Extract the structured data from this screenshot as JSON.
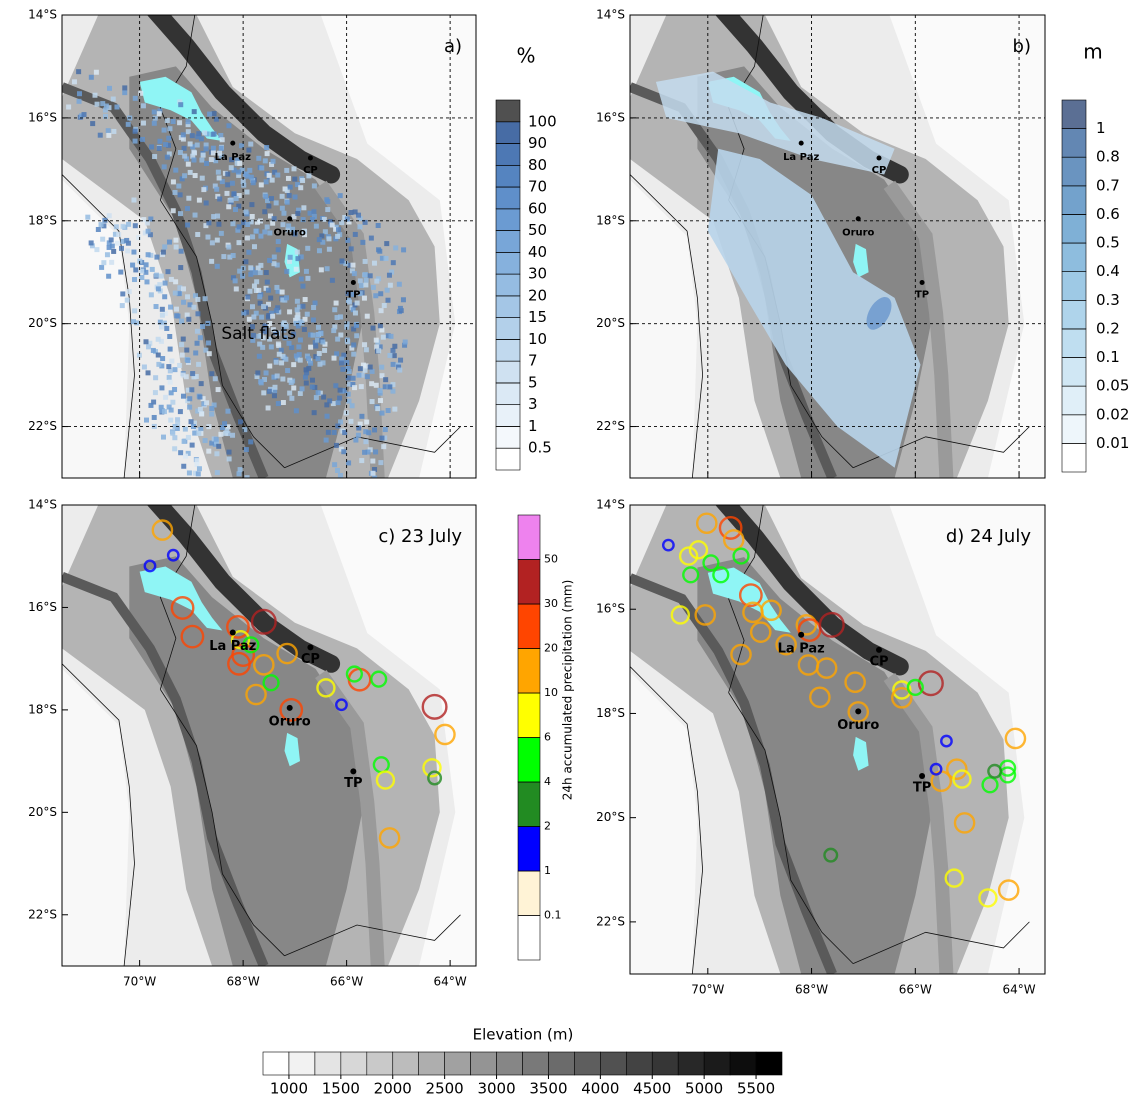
{
  "panels": [
    {
      "label": "a)"
    },
    {
      "label": "b)"
    },
    {
      "label": "c) 23 July",
      "stations": [
        {
          "lon": -69.56,
          "lat": -14.49,
          "value": 15
        },
        {
          "lon": -69.17,
          "lat": -16.01,
          "value": 25
        },
        {
          "lon": -68.98,
          "lat": -16.57,
          "value": 25
        },
        {
          "lon": -68.1,
          "lat": -16.38,
          "value": 25
        },
        {
          "lon": -67.6,
          "lat": -16.28,
          "value": 40
        },
        {
          "lon": -68.0,
          "lat": -16.93,
          "value": 25
        },
        {
          "lon": -68.08,
          "lat": -17.1,
          "value": 25
        },
        {
          "lon": -68.05,
          "lat": -16.63,
          "value": 8
        },
        {
          "lon": -67.85,
          "lat": -16.73,
          "value": 5
        },
        {
          "lon": -67.6,
          "lat": -17.12,
          "value": 15
        },
        {
          "lon": -67.75,
          "lat": -17.7,
          "value": 15
        },
        {
          "lon": -67.15,
          "lat": -16.9,
          "value": 15
        },
        {
          "lon": -67.07,
          "lat": -18.0,
          "value": 25
        },
        {
          "lon": -66.4,
          "lat": -17.57,
          "value": 8
        },
        {
          "lon": -65.75,
          "lat": -17.41,
          "value": 25
        },
        {
          "lon": -65.85,
          "lat": -17.3,
          "value": 5
        },
        {
          "lon": -66.1,
          "lat": -17.9,
          "value": 1.5
        },
        {
          "lon": -65.38,
          "lat": -17.4,
          "value": 5
        },
        {
          "lon": -64.3,
          "lat": -17.94,
          "value": 40
        },
        {
          "lon": -64.1,
          "lat": -18.48,
          "value": 15
        },
        {
          "lon": -65.33,
          "lat": -19.07,
          "value": 5
        },
        {
          "lon": -65.25,
          "lat": -19.37,
          "value": 8
        },
        {
          "lon": -64.35,
          "lat": -19.13,
          "value": 8
        },
        {
          "lon": -64.3,
          "lat": -19.33,
          "value": 3
        },
        {
          "lon": -65.17,
          "lat": -20.5,
          "value": 15
        },
        {
          "lon": -69.35,
          "lat": -14.98,
          "value": 1.5
        },
        {
          "lon": -69.8,
          "lat": -15.19,
          "value": 1.5
        },
        {
          "lon": -67.46,
          "lat": -17.47,
          "value": 5
        }
      ]
    },
    {
      "label": "d) 24 July",
      "stations": [
        {
          "lon": -70.02,
          "lat": -14.35,
          "value": 15
        },
        {
          "lon": -69.56,
          "lat": -14.44,
          "value": 25
        },
        {
          "lon": -69.5,
          "lat": -14.67,
          "value": 15
        },
        {
          "lon": -70.37,
          "lat": -14.98,
          "value": 8
        },
        {
          "lon": -70.18,
          "lat": -14.86,
          "value": 8
        },
        {
          "lon": -70.33,
          "lat": -15.34,
          "value": 5
        },
        {
          "lon": -69.94,
          "lat": -15.11,
          "value": 5
        },
        {
          "lon": -69.75,
          "lat": -15.34,
          "value": 5
        },
        {
          "lon": -69.36,
          "lat": -14.98,
          "value": 5
        },
        {
          "lon": -70.53,
          "lat": -16.11,
          "value": 8
        },
        {
          "lon": -70.05,
          "lat": -16.11,
          "value": 15
        },
        {
          "lon": -69.17,
          "lat": -15.73,
          "value": 25
        },
        {
          "lon": -69.13,
          "lat": -16.06,
          "value": 15
        },
        {
          "lon": -68.78,
          "lat": -16.02,
          "value": 15
        },
        {
          "lon": -68.98,
          "lat": -16.44,
          "value": 15
        },
        {
          "lon": -68.1,
          "lat": -16.3,
          "value": 15
        },
        {
          "lon": -68.04,
          "lat": -16.4,
          "value": 25
        },
        {
          "lon": -67.61,
          "lat": -16.3,
          "value": 40
        },
        {
          "lon": -68.49,
          "lat": -16.68,
          "value": 15
        },
        {
          "lon": -68.06,
          "lat": -17.07,
          "value": 15
        },
        {
          "lon": -67.71,
          "lat": -17.13,
          "value": 15
        },
        {
          "lon": -69.36,
          "lat": -16.87,
          "value": 15
        },
        {
          "lon": -67.84,
          "lat": -17.69,
          "value": 15
        },
        {
          "lon": -67.16,
          "lat": -17.4,
          "value": 15
        },
        {
          "lon": -67.1,
          "lat": -17.97,
          "value": 15
        },
        {
          "lon": -66.26,
          "lat": -17.55,
          "value": 8
        },
        {
          "lon": -66.26,
          "lat": -17.7,
          "value": 15
        },
        {
          "lon": -65.7,
          "lat": -17.42,
          "value": 40
        },
        {
          "lon": -66.0,
          "lat": -17.5,
          "value": 5
        },
        {
          "lon": -65.5,
          "lat": -19.3,
          "value": 15
        },
        {
          "lon": -65.2,
          "lat": -19.07,
          "value": 15
        },
        {
          "lon": -65.1,
          "lat": -19.26,
          "value": 8
        },
        {
          "lon": -64.56,
          "lat": -19.37,
          "value": 5
        },
        {
          "lon": -64.22,
          "lat": -19.18,
          "value": 5
        },
        {
          "lon": -64.22,
          "lat": -19.05,
          "value": 5
        },
        {
          "lon": -64.07,
          "lat": -18.48,
          "value": 15
        },
        {
          "lon": -65.05,
          "lat": -20.1,
          "value": 15
        },
        {
          "lon": -65.25,
          "lat": -21.16,
          "value": 8
        },
        {
          "lon": -64.2,
          "lat": -21.39,
          "value": 15
        },
        {
          "lon": -64.6,
          "lat": -21.54,
          "value": 8
        },
        {
          "lon": -67.63,
          "lat": -20.72,
          "value": 3
        },
        {
          "lon": -65.6,
          "lat": -19.07,
          "value": 1.5
        },
        {
          "lon": -65.4,
          "lat": -18.53,
          "value": 1.5
        },
        {
          "lon": -70.76,
          "lat": -14.77,
          "value": 1.5
        },
        {
          "lon": -64.47,
          "lat": -19.11,
          "value": 3
        }
      ]
    }
  ],
  "lonlim": [
    -71.5,
    -63.5
  ],
  "latlim": [
    -23,
    -14
  ],
  "lat_ticks": [
    {
      "value": -14,
      "label": "14°S"
    },
    {
      "value": -16,
      "label": "16°S"
    },
    {
      "value": -18,
      "label": "18°S"
    },
    {
      "value": -20,
      "label": "20°S"
    },
    {
      "value": -22,
      "label": "22°S"
    }
  ],
  "lon_ticks": [
    {
      "value": -70,
      "label": "70°W"
    },
    {
      "value": -68,
      "label": "68°W"
    },
    {
      "value": -66,
      "label": "66°W"
    },
    {
      "value": -64,
      "label": "64°W"
    }
  ],
  "places": [
    {
      "name": "La Paz",
      "lon": -68.2,
      "lat": -16.49
    },
    {
      "name": "CP",
      "lon": -66.7,
      "lat": -16.78
    },
    {
      "name": "Oruro",
      "lon": -67.1,
      "lat": -17.96
    },
    {
      "name": "TP",
      "lon": -65.87,
      "lat": -19.2
    }
  ],
  "annotation": "Salt flats",
  "percent_colorbar": {
    "title": "%",
    "ticks": [
      0.5,
      1,
      3,
      5,
      7,
      10,
      15,
      20,
      30,
      40,
      50,
      60,
      70,
      80,
      90,
      100
    ],
    "colors": [
      "#ffffff",
      "#f4f8fc",
      "#e8f1f9",
      "#dbe9f5",
      "#cfe1f1",
      "#c1d9ee",
      "#b3d0ea",
      "#a4c6e6",
      "#95bce2",
      "#86b1dd",
      "#78a6d8",
      "#6b9bd2",
      "#5f8fca",
      "#5584c0",
      "#4d78b4",
      "#476ca5",
      "#505050"
    ]
  },
  "depth_colorbar": {
    "title": "m",
    "ticks": [
      0.01,
      0.02,
      0.05,
      0.1,
      0.2,
      0.3,
      0.4,
      0.5,
      0.6,
      0.7,
      0.8,
      1
    ],
    "colors": [
      "#ffffff",
      "#eef6fb",
      "#e0eff8",
      "#d0e7f4",
      "#bfdef0",
      "#afd4eb",
      "#9ec9e5",
      "#8ebdde",
      "#7fb0d6",
      "#73a2cc",
      "#6a94c0",
      "#6387b3",
      "#5b6f94"
    ]
  },
  "precip_colorbar": {
    "title": "24h accumulated precipitation (mm)",
    "ticks": [
      0.1,
      1,
      2,
      4,
      6,
      10,
      20,
      30,
      50
    ],
    "colors": [
      "#ffffff",
      "#fff3d6",
      "#0000ff",
      "#228b22",
      "#00ff00",
      "#ffff00",
      "#ffa500",
      "#ff4500",
      "#b22222",
      "#ee82ee"
    ]
  },
  "elevation_colorbar": {
    "title": "Elevation (m)",
    "ticks": [
      1000,
      1500,
      2000,
      2500,
      3000,
      3500,
      4000,
      4500,
      5000,
      5500
    ]
  }
}
